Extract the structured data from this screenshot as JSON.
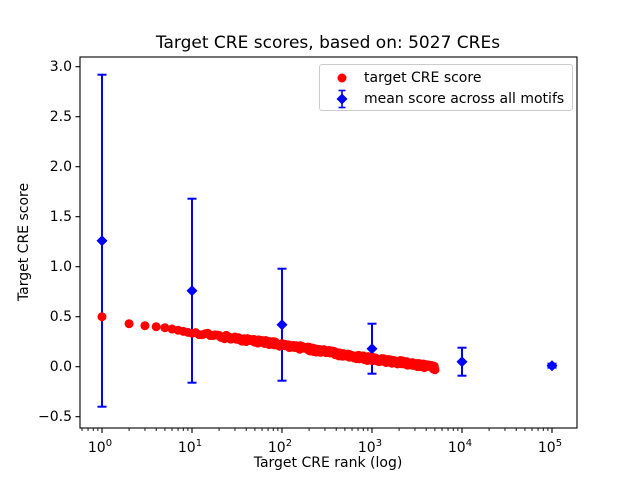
{
  "chart_data": {
    "type": "scatter",
    "title": "Target CRE scores, based on: 5027 CREs",
    "xlabel": "Target CRE rank (log)",
    "ylabel": "Target CRE score",
    "x_scale": "log",
    "xlim_log10": [
      -0.2444,
      5.2778
    ],
    "ylim": [
      -0.613,
      3.097
    ],
    "x_tick_exponents": [
      0,
      1,
      2,
      3,
      4,
      5
    ],
    "y_ticks": [
      -0.5,
      0.0,
      0.5,
      1.0,
      1.5,
      2.0,
      2.5,
      3.0
    ],
    "grid": false,
    "series": [
      {
        "name": "target CRE score",
        "kind": "scatter-band",
        "color": "#ff0000",
        "marker": "circle",
        "n_points": 5027,
        "value_anchors": [
          [
            1,
            0.5
          ],
          [
            2,
            0.43
          ],
          [
            3,
            0.41
          ],
          [
            4,
            0.4
          ],
          [
            5,
            0.39
          ],
          [
            7,
            0.365
          ],
          [
            10,
            0.335
          ],
          [
            30,
            0.285
          ],
          [
            100,
            0.22
          ],
          [
            300,
            0.15
          ],
          [
            1000,
            0.075
          ],
          [
            2000,
            0.045
          ],
          [
            3500,
            0.015
          ],
          [
            5027,
            -0.015
          ]
        ],
        "spread": 0.02
      },
      {
        "name": "mean score across all motifs",
        "kind": "errorbar",
        "color": "#0000ff",
        "marker": "diamond",
        "x": [
          1,
          10,
          100,
          1000,
          10000,
          100000
        ],
        "mean": [
          1.26,
          0.76,
          0.42,
          0.18,
          0.05,
          0.01
        ],
        "std": [
          1.66,
          0.92,
          0.56,
          0.25,
          0.14,
          0.02
        ]
      }
    ],
    "legend": {
      "position": "upper right",
      "entries": [
        {
          "label": "target CRE score",
          "marker": "red-circle"
        },
        {
          "label": "mean score across all motifs",
          "marker": "blue-diamond-errorbar"
        }
      ]
    }
  }
}
